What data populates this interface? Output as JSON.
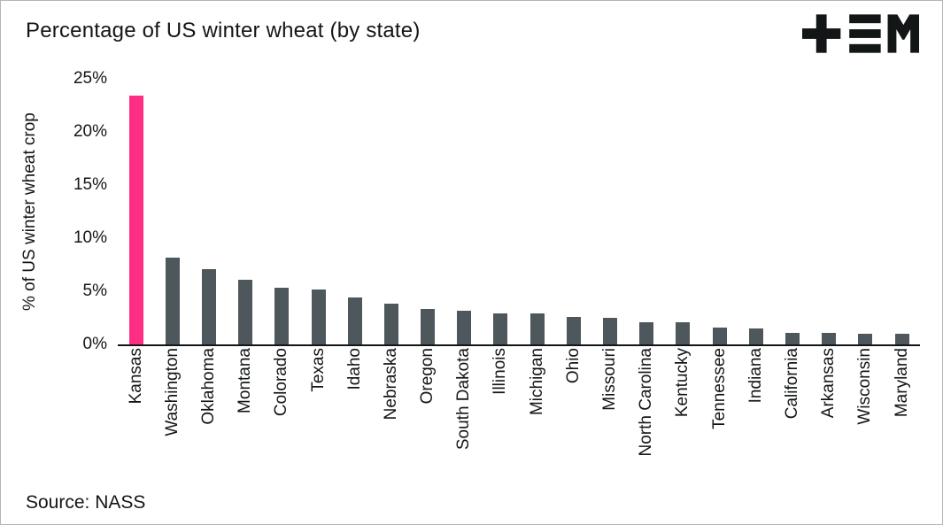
{
  "header": {
    "title": "Percentage of US winter wheat (by state)",
    "logo": "tem-logo"
  },
  "footer": {
    "source": "Source: NASS"
  },
  "chart_data": {
    "type": "bar",
    "title": "Percentage of US winter wheat (by state)",
    "xlabel": "",
    "ylabel": "% of US winter wheat crop",
    "ylim": [
      0,
      25
    ],
    "yticks": [
      0,
      5,
      10,
      15,
      20,
      25
    ],
    "ytick_labels": [
      "0%",
      "5%",
      "10%",
      "15%",
      "20%",
      "25%"
    ],
    "grid": false,
    "legend": "none",
    "categories": [
      "Kansas",
      "Washington",
      "Oklahoma",
      "Montana",
      "Colorado",
      "Texas",
      "Idaho",
      "Nebraska",
      "Oregon",
      "South Dakota",
      "Illinois",
      "Michigan",
      "Ohio",
      "Missouri",
      "North Carolina",
      "Kentucky",
      "Tennessee",
      "Indiana",
      "California",
      "Arkansas",
      "Wisconsin",
      "Maryland"
    ],
    "values": [
      23.4,
      8.2,
      7.1,
      6.1,
      5.3,
      5.2,
      4.4,
      3.8,
      3.3,
      3.2,
      2.9,
      2.9,
      2.6,
      2.5,
      2.1,
      2.1,
      1.6,
      1.5,
      1.1,
      1.1,
      1.0,
      1.0
    ],
    "highlight_category": "Kansas",
    "colors": {
      "bar": "#4e585c",
      "highlight": "#ff2e85",
      "axis": "#131616",
      "text": "#131616"
    }
  }
}
